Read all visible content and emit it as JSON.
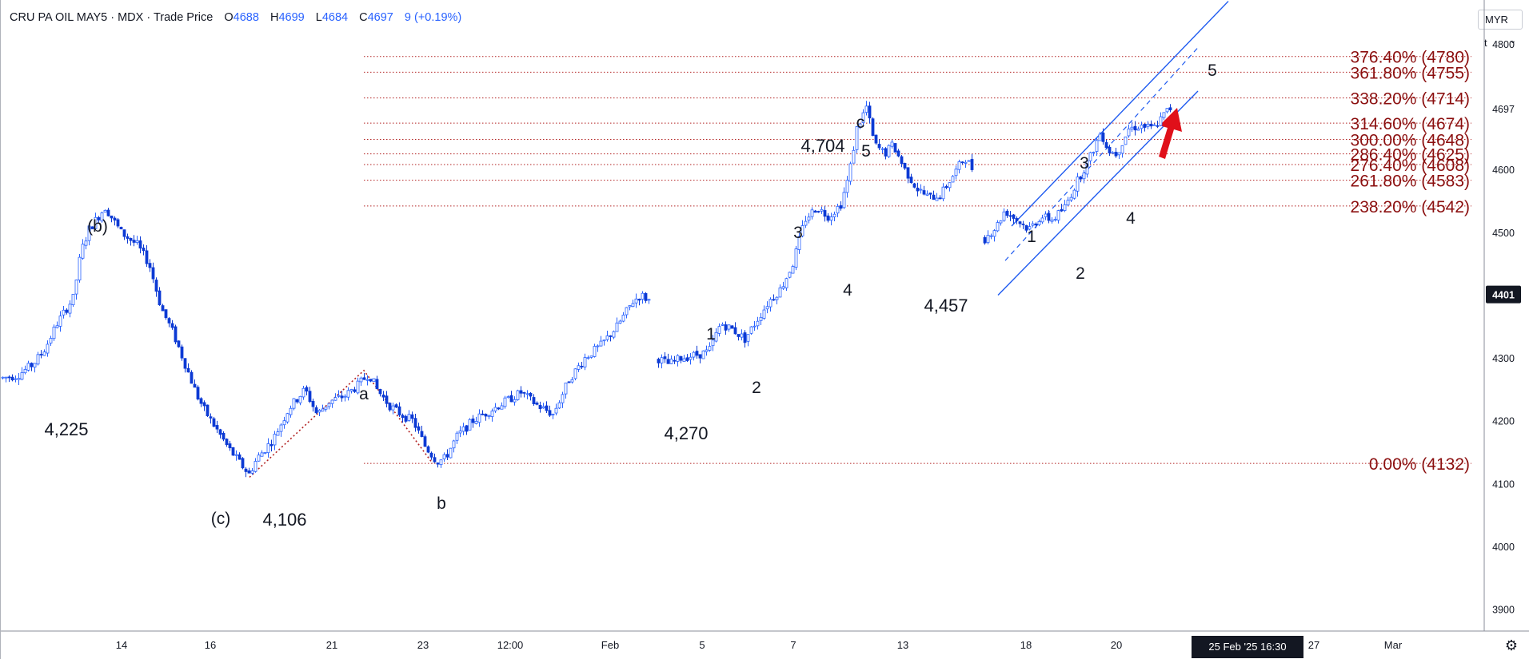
{
  "header": {
    "symbol": "CRU PA OIL MAY5 · MDX · Trade Price",
    "o_label": "O",
    "o_value": "4688",
    "h_label": "H",
    "h_value": "4699",
    "l_label": "L",
    "l_value": "4684",
    "c_label": "C",
    "c_value": "4697",
    "change": "9 (+0.19%)"
  },
  "controls": {
    "currency": "MYR",
    "unit": "t",
    "settings_icon": "gear-icon"
  },
  "colors": {
    "up": "#2962ff",
    "down": "#0d3ad4",
    "annotation": "#8b0f0f",
    "channel": "#1e5af0",
    "arrow": "#e0101a"
  },
  "chart_data": {
    "type": "candlestick",
    "ylim": [
      3865,
      4870
    ],
    "y_ticks": [
      3900,
      4000,
      4100,
      4200,
      4300,
      4400,
      4500,
      4600,
      4700,
      4800
    ],
    "y_tick_labels": [
      "3900",
      "4000",
      "4100",
      "4200",
      "4300",
      "",
      "4500",
      "4600",
      "",
      "4800"
    ],
    "price_badges": [
      {
        "text": "4697",
        "value": 4697,
        "style": "light"
      },
      {
        "text": "4401",
        "value": 4401,
        "style": "dark"
      }
    ],
    "x_labels": [
      "14",
      "16",
      "21",
      "23",
      "12:00",
      "Feb",
      "5",
      "7",
      "13",
      "18",
      "20",
      "27",
      "Mar"
    ],
    "x_cursor_label": "25 Feb '25   16:30",
    "price_path": [
      [
        0,
        4268
      ],
      [
        20,
        4272
      ],
      [
        40,
        4290
      ],
      [
        55,
        4315
      ],
      [
        70,
        4355
      ],
      [
        90,
        4395
      ],
      [
        100,
        4470
      ],
      [
        110,
        4505
      ],
      [
        130,
        4540
      ],
      [
        150,
        4500
      ],
      [
        170,
        4480
      ],
      [
        185,
        4450
      ],
      [
        200,
        4380
      ],
      [
        215,
        4340
      ],
      [
        230,
        4290
      ],
      [
        245,
        4240
      ],
      [
        255,
        4215
      ],
      [
        270,
        4185
      ],
      [
        285,
        4155
      ],
      [
        300,
        4130
      ],
      [
        310,
        4115
      ],
      [
        320,
        4140
      ],
      [
        340,
        4170
      ],
      [
        360,
        4220
      ],
      [
        380,
        4250
      ],
      [
        395,
        4210
      ],
      [
        410,
        4230
      ],
      [
        430,
        4240
      ],
      [
        445,
        4255
      ],
      [
        460,
        4275
      ],
      [
        470,
        4250
      ],
      [
        485,
        4225
      ],
      [
        500,
        4210
      ],
      [
        515,
        4200
      ],
      [
        530,
        4160
      ],
      [
        545,
        4135
      ],
      [
        555,
        4140
      ],
      [
        570,
        4175
      ],
      [
        590,
        4200
      ],
      [
        610,
        4215
      ],
      [
        630,
        4230
      ],
      [
        650,
        4245
      ],
      [
        670,
        4225
      ],
      [
        690,
        4210
      ],
      [
        710,
        4265
      ],
      [
        730,
        4300
      ],
      [
        750,
        4320
      ],
      [
        770,
        4350
      ],
      [
        790,
        4390
      ],
      [
        800,
        4400
      ],
      [
        812,
        4390
      ],
      [
        820,
        4300
      ],
      [
        835,
        4290
      ],
      [
        850,
        4300
      ],
      [
        870,
        4305
      ],
      [
        885,
        4310
      ],
      [
        900,
        4355
      ],
      [
        915,
        4345
      ],
      [
        930,
        4330
      ],
      [
        945,
        4360
      ],
      [
        960,
        4390
      ],
      [
        975,
        4410
      ],
      [
        990,
        4450
      ],
      [
        1005,
        4520
      ],
      [
        1020,
        4540
      ],
      [
        1035,
        4525
      ],
      [
        1050,
        4545
      ],
      [
        1060,
        4590
      ],
      [
        1070,
        4665
      ],
      [
        1082,
        4700
      ],
      [
        1092,
        4640
      ],
      [
        1105,
        4625
      ],
      [
        1115,
        4640
      ],
      [
        1130,
        4600
      ],
      [
        1145,
        4570
      ],
      [
        1160,
        4555
      ],
      [
        1175,
        4560
      ],
      [
        1190,
        4590
      ],
      [
        1205,
        4620
      ],
      [
        1215,
        4600
      ],
      [
        1230,
        4490
      ],
      [
        1245,
        4510
      ],
      [
        1255,
        4535
      ],
      [
        1270,
        4520
      ],
      [
        1285,
        4505
      ],
      [
        1300,
        4525
      ],
      [
        1315,
        4520
      ],
      [
        1330,
        4540
      ],
      [
        1345,
        4580
      ],
      [
        1360,
        4615
      ],
      [
        1375,
        4660
      ],
      [
        1385,
        4630
      ],
      [
        1395,
        4625
      ],
      [
        1410,
        4665
      ],
      [
        1425,
        4670
      ],
      [
        1440,
        4665
      ],
      [
        1450,
        4680
      ],
      [
        1460,
        4697
      ]
    ],
    "fibonacci": [
      {
        "label": "376.40% (4780)",
        "value": 4780
      },
      {
        "label": "361.80% (4755)",
        "value": 4755
      },
      {
        "label": "338.20% (4714)",
        "value": 4714
      },
      {
        "label": "314.60% (4674)",
        "value": 4674
      },
      {
        "label": "300.00% (4648)",
        "value": 4648
      },
      {
        "label": "286.40% (4625)",
        "value": 4625
      },
      {
        "label": "276.40% (4608)",
        "value": 4608
      },
      {
        "label": "261.80% (4583)",
        "value": 4583
      },
      {
        "label": "238.20% (4542)",
        "value": 4542
      },
      {
        "label": "0.00% (4132)",
        "value": 4132
      }
    ],
    "price_labels": [
      "4,225",
      "4,106",
      "4,270",
      "4,704",
      "4,457"
    ],
    "wave_labels": [
      "(b)",
      "(c)",
      "a",
      "b",
      "c",
      "1",
      "2",
      "3",
      "4",
      "5",
      "5",
      "1",
      "2",
      "3",
      "4",
      "5"
    ]
  }
}
